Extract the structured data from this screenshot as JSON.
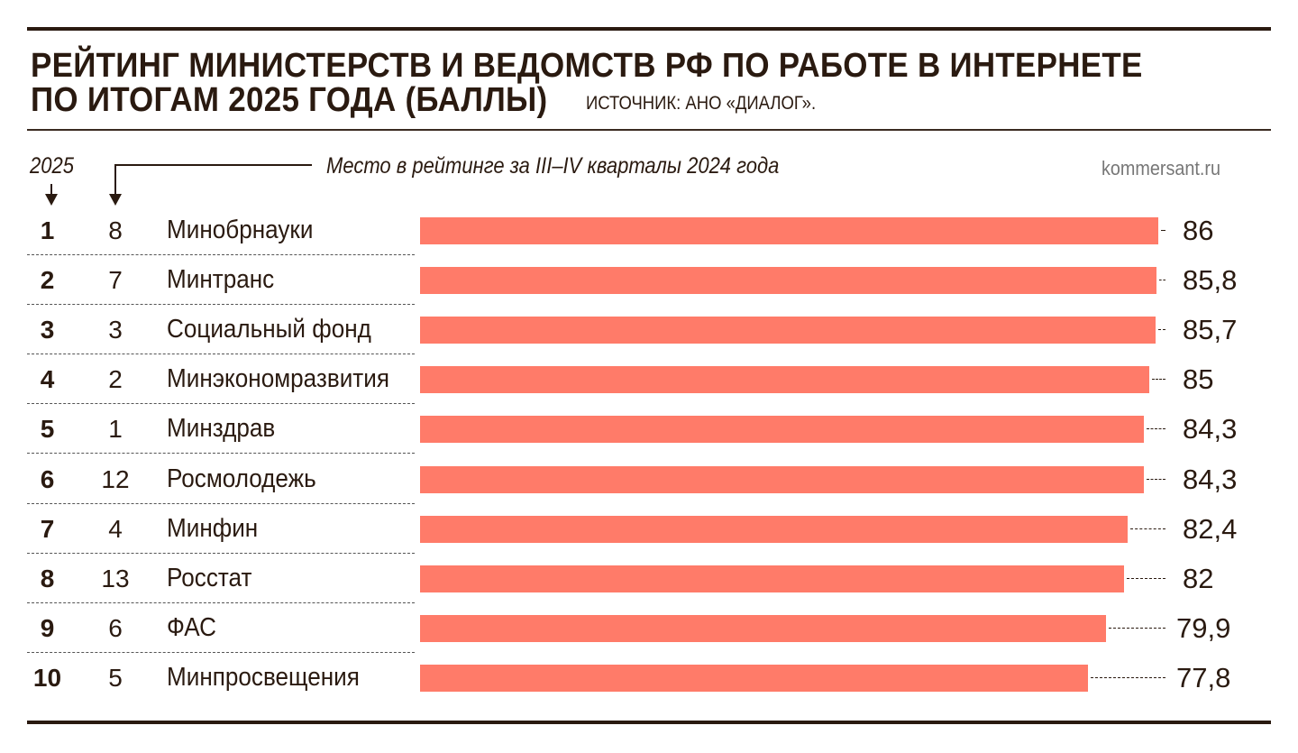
{
  "header": {
    "title_line1": "РЕЙТИНГ МИНИСТЕРСТВ И ВЕДОМСТВ РФ ПО РАБОТЕ В ИНТЕРНЕТЕ",
    "title_line2": "ПО ИТОГАМ 2025 ГОДА (БАЛЛЫ)",
    "source": "ИСТОЧНИК: АНО «ДИАЛОГ».",
    "year_label": "2025",
    "prev_label": "Место в рейтинге за III–IV кварталы 2024 года",
    "site": "kommersant.ru"
  },
  "chart_data": {
    "type": "bar",
    "orientation": "horizontal",
    "title": "РЕЙТИНГ МИНИСТЕРСТВ И ВЕДОМСТВ РФ ПО РАБОТЕ В ИНТЕРНЕТЕ ПО ИТОГАМ 2025 ГОДА (БАЛЛЫ)",
    "bar_color": "#ff7b69",
    "xlim": [
      0,
      86
    ],
    "grid": false,
    "rows": [
      {
        "rank": "1",
        "prev": "8",
        "name": "Минобрнауки",
        "value": 86,
        "label": "86"
      },
      {
        "rank": "2",
        "prev": "7",
        "name": "Минтранс",
        "value": 85.8,
        "label": "85,8"
      },
      {
        "rank": "3",
        "prev": "3",
        "name": "Социальный фонд",
        "value": 85.7,
        "label": "85,7"
      },
      {
        "rank": "4",
        "prev": "2",
        "name": "Минэкономразвития",
        "value": 85,
        "label": "85"
      },
      {
        "rank": "5",
        "prev": "1",
        "name": "Минздрав",
        "value": 84.3,
        "label": "84,3"
      },
      {
        "rank": "6",
        "prev": "12",
        "name": "Росмолодежь",
        "value": 84.3,
        "label": "84,3"
      },
      {
        "rank": "7",
        "prev": "4",
        "name": "Минфин",
        "value": 82.4,
        "label": "82,4"
      },
      {
        "rank": "8",
        "prev": "13",
        "name": "Росстат",
        "value": 82,
        "label": "82"
      },
      {
        "rank": "9",
        "prev": "6",
        "name": "ФАС",
        "value": 79.9,
        "label": "79,9"
      },
      {
        "rank": "10",
        "prev": "5",
        "name": "Минпросвещения",
        "value": 77.8,
        "label": "77,8"
      }
    ]
  }
}
